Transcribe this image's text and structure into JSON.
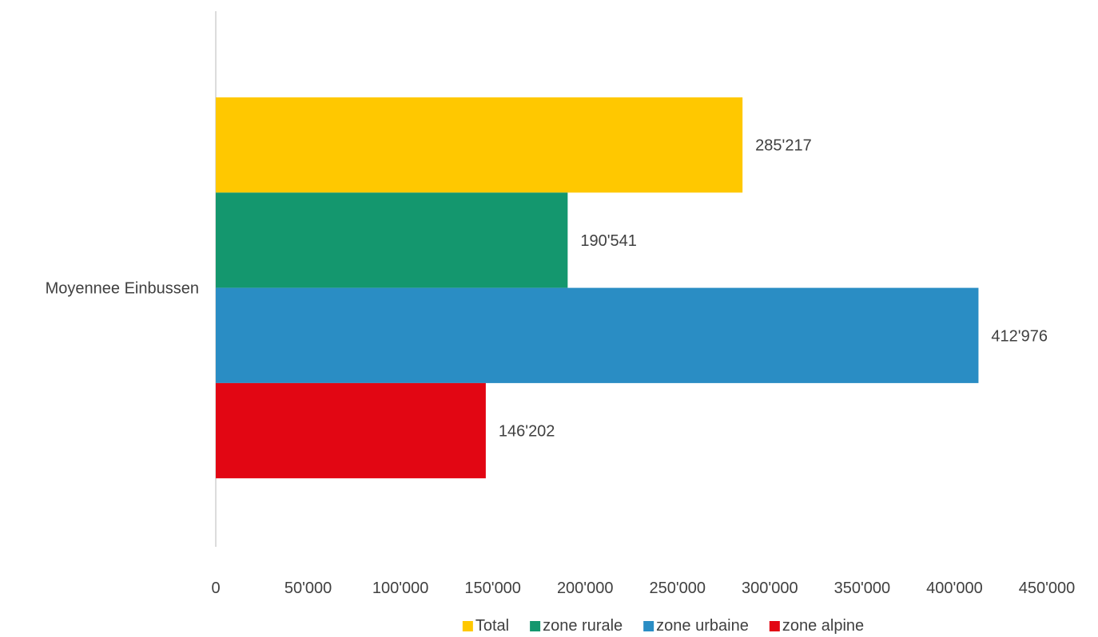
{
  "chart_data": {
    "type": "bar",
    "orientation": "horizontal",
    "categories": [
      "Moyennee Einbussen"
    ],
    "series": [
      {
        "name": "Total",
        "values": [
          285217
        ],
        "label": "285'217",
        "color": "#FFC800"
      },
      {
        "name": "zone rurale",
        "values": [
          190541
        ],
        "label": "190'541",
        "color": "#14976E"
      },
      {
        "name": "zone urbaine",
        "values": [
          412976
        ],
        "label": "412'976",
        "color": "#2A8DC4"
      },
      {
        "name": "zone alpine",
        "values": [
          146202
        ],
        "label": "146'202",
        "color": "#E20613"
      }
    ],
    "xlim": [
      0,
      450000
    ],
    "xticks": [
      0,
      50000,
      100000,
      150000,
      200000,
      250000,
      300000,
      350000,
      400000,
      450000
    ],
    "xtick_labels": [
      "0",
      "50'000",
      "100'000",
      "150'000",
      "200'000",
      "250'000",
      "300'000",
      "350'000",
      "400'000",
      "450'000"
    ],
    "grid": false,
    "legend_position": "bottom"
  }
}
